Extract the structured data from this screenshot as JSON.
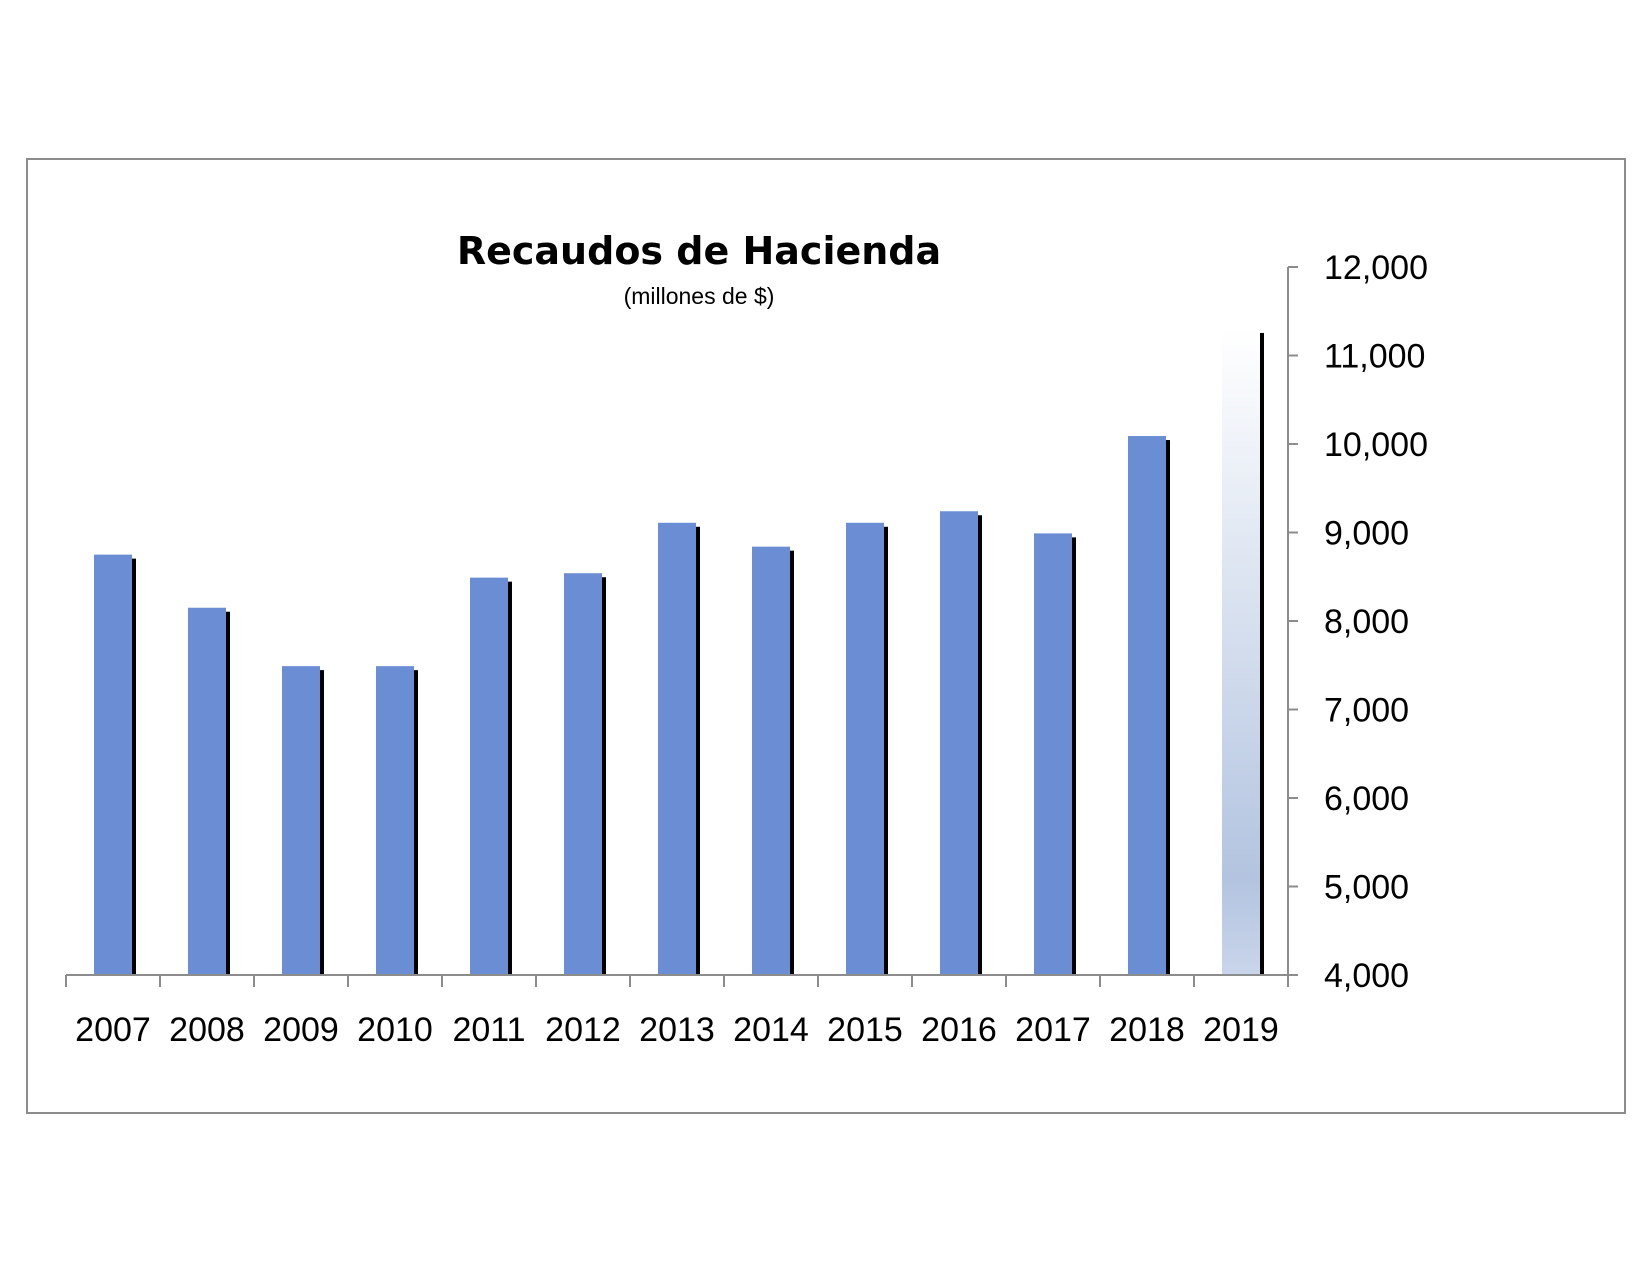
{
  "chart_data": {
    "type": "bar",
    "title": "Recaudos de Hacienda",
    "subtitle": "(millones de $)",
    "xlabel": "",
    "ylabel": "",
    "categories": [
      "2007",
      "2008",
      "2009",
      "2010",
      "2011",
      "2012",
      "2013",
      "2014",
      "2015",
      "2016",
      "2017",
      "2018",
      "2019"
    ],
    "values": [
      8750,
      8150,
      7490,
      7490,
      8490,
      8540,
      9110,
      8840,
      9110,
      9240,
      8990,
      10090,
      11300
    ],
    "highlight_last": true,
    "ylim": [
      4000,
      12000
    ],
    "yticks": [
      4000,
      5000,
      6000,
      7000,
      8000,
      9000,
      10000,
      11000,
      12000
    ],
    "ytick_labels": [
      "4,000",
      "5,000",
      "6,000",
      "7,000",
      "8,000",
      "9,000",
      "10,000",
      "11,000",
      "12,000"
    ],
    "y_axis_side": "right",
    "grid": false,
    "legend": "none",
    "colors": {
      "bar": "#6a8dd4",
      "bar_shadow": "#000000",
      "highlight_top": "#ffffff",
      "highlight_mid": "#b3c4e0",
      "axis": "#8c8c8c"
    }
  }
}
